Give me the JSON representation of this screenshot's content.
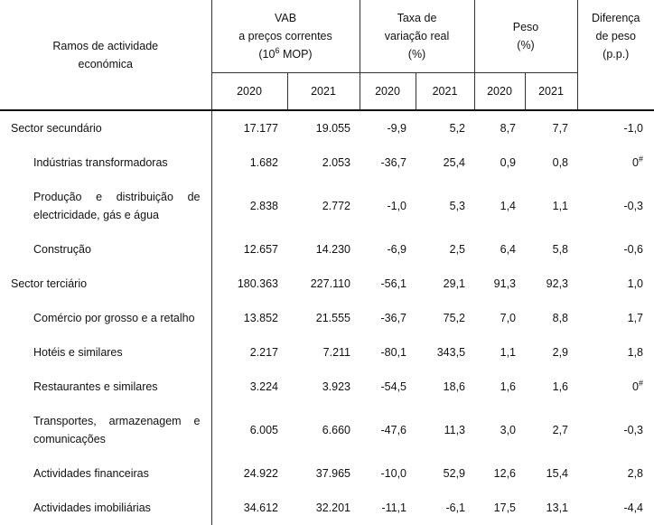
{
  "headers": {
    "ramos": "Ramos de actividade económica",
    "vab_line1": "VAB",
    "vab_line2": "a preços correntes",
    "vab_line3_pre": "(10",
    "vab_line3_sup": "6",
    "vab_line3_post": " MOP)",
    "taxa_line1": "Taxa de",
    "taxa_line2": "variação real",
    "taxa_line3": "(%)",
    "peso_line1": "Peso",
    "peso_line2": "(%)",
    "dif_line1": "Diferença",
    "dif_line2": "de peso",
    "dif_line3": "(p.p.)",
    "years": [
      "2020",
      "2021",
      "2020",
      "2021",
      "2020",
      "2021"
    ]
  },
  "rows": [
    {
      "label": "Sector secundário",
      "indent": false,
      "tall": false,
      "values": [
        "17.177",
        "19.055",
        "-9,9",
        "5,2",
        "8,7",
        "7,7",
        "-1,0"
      ],
      "dif_sup": ""
    },
    {
      "label": "Indústrias transformadoras",
      "indent": true,
      "tall": false,
      "values": [
        "1.682",
        "2.053",
        "-36,7",
        "25,4",
        "0,9",
        "0,8",
        "0"
      ],
      "dif_sup": "#"
    },
    {
      "label": "Produção e distribuição de electricidade, gás e água",
      "indent": true,
      "tall": true,
      "values": [
        "2.838",
        "2.772",
        "-1,0",
        "5,3",
        "1,4",
        "1,1",
        "-0,3"
      ],
      "dif_sup": ""
    },
    {
      "label": "Construção",
      "indent": true,
      "tall": false,
      "values": [
        "12.657",
        "14.230",
        "-6,9",
        "2,5",
        "6,4",
        "5,8",
        "-0,6"
      ],
      "dif_sup": ""
    },
    {
      "label": "Sector terciário",
      "indent": false,
      "tall": false,
      "values": [
        "180.363",
        "227.110",
        "-56,1",
        "29,1",
        "91,3",
        "92,3",
        "1,0"
      ],
      "dif_sup": ""
    },
    {
      "label": "Comércio por grosso e a retalho",
      "indent": true,
      "tall": false,
      "values": [
        "13.852",
        "21.555",
        "-36,7",
        "75,2",
        "7,0",
        "8,8",
        "1,7"
      ],
      "dif_sup": ""
    },
    {
      "label": "Hotéis e similares",
      "indent": true,
      "tall": false,
      "values": [
        "2.217",
        "7.211",
        "-80,1",
        "343,5",
        "1,1",
        "2,9",
        "1,8"
      ],
      "dif_sup": ""
    },
    {
      "label": "Restaurantes e similares",
      "indent": true,
      "tall": false,
      "values": [
        "3.224",
        "3.923",
        "-54,5",
        "18,6",
        "1,6",
        "1,6",
        "0"
      ],
      "dif_sup": "#"
    },
    {
      "label": "Transportes, armazenagem e comunicações",
      "indent": true,
      "tall": true,
      "values": [
        "6.005",
        "6.660",
        "-47,6",
        "11,3",
        "3,0",
        "2,7",
        "-0,3"
      ],
      "dif_sup": ""
    },
    {
      "label": "Actividades financeiras",
      "indent": true,
      "tall": false,
      "values": [
        "24.922",
        "37.965",
        "-10,0",
        "52,9",
        "12,6",
        "15,4",
        "2,8"
      ],
      "dif_sup": ""
    },
    {
      "label": "Actividades imobiliárias",
      "indent": true,
      "tall": false,
      "values": [
        "34.612",
        "32.201",
        "-11,1",
        "-6,1",
        "17,5",
        "13,1",
        "-4,4"
      ],
      "dif_sup": ""
    }
  ]
}
